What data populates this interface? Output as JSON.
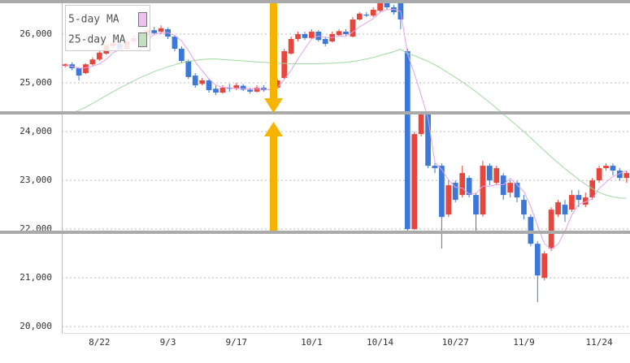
{
  "chart_data": {
    "type": "candlestick",
    "categories": [
      null,
      null,
      null,
      null,
      null,
      "8/22",
      null,
      null,
      null,
      null,
      null,
      null,
      null,
      null,
      null,
      "9/3",
      null,
      null,
      null,
      null,
      null,
      null,
      null,
      null,
      null,
      "9/17",
      null,
      null,
      null,
      null,
      null,
      null,
      null,
      null,
      null,
      null,
      "10/1",
      null,
      null,
      null,
      null,
      null,
      null,
      null,
      null,
      null,
      "10/14",
      null,
      null,
      null,
      null,
      null,
      null,
      null,
      null,
      null,
      null,
      "10/27",
      null,
      null,
      null,
      null,
      null,
      null,
      null,
      null,
      null,
      "11/9",
      null,
      null,
      null,
      null,
      null,
      null,
      null,
      null,
      null,
      null,
      "11/24",
      null,
      null,
      null,
      null
    ],
    "open": [
      25350,
      25380,
      25300,
      25200,
      25380,
      25480,
      25600,
      25750,
      25800,
      25700,
      25850,
      25900,
      25980,
      26080,
      26050,
      26100,
      25950,
      25700,
      25450,
      25150,
      24980,
      25050,
      24880,
      24800,
      24900,
      24880,
      24940,
      24860,
      24820,
      24900,
      24850,
      24900,
      25100,
      25600,
      25900,
      26000,
      25920,
      26050,
      25900,
      25850,
      25980,
      26050,
      25950,
      26300,
      26400,
      26380,
      26480,
      26650,
      26550,
      26650,
      25650,
      22000,
      23950,
      24350,
      23300,
      23300,
      22300,
      22950,
      22700,
      23050,
      22700,
      22300,
      23300,
      22950,
      23100,
      22750,
      22950,
      22600,
      22250,
      21700,
      21000,
      21600,
      22300,
      22500,
      22400,
      22700,
      22500,
      22650,
      23000,
      23250,
      23300,
      23200,
      23050
    ],
    "high": [
      25400,
      25420,
      25320,
      25400,
      25520,
      25650,
      25800,
      25880,
      25830,
      25900,
      25980,
      26050,
      26120,
      26150,
      26180,
      26130,
      25980,
      25750,
      25480,
      25200,
      25100,
      25080,
      24950,
      24950,
      24980,
      25000,
      24980,
      24900,
      24950,
      24950,
      24920,
      25080,
      25700,
      25950,
      26050,
      26050,
      26100,
      26080,
      25950,
      26050,
      26100,
      26100,
      26350,
      26450,
      26450,
      26550,
      26700,
      26680,
      26600,
      26680,
      25700,
      24000,
      24400,
      24380,
      23350,
      23350,
      23000,
      23000,
      23300,
      23100,
      22750,
      23400,
      23350,
      23300,
      23150,
      23000,
      23000,
      22700,
      22300,
      21750,
      21550,
      22450,
      22600,
      22600,
      22800,
      22800,
      22750,
      23050,
      23300,
      23350,
      23350,
      23250,
      23200
    ],
    "low": [
      25320,
      25260,
      25050,
      25180,
      25350,
      25450,
      25580,
      25700,
      25650,
      25680,
      25820,
      25880,
      25950,
      25980,
      26000,
      25900,
      25650,
      25400,
      25080,
      24900,
      24950,
      24800,
      24750,
      24780,
      24820,
      24850,
      24830,
      24780,
      24800,
      24820,
      24780,
      24880,
      25080,
      25580,
      25850,
      25880,
      25900,
      25850,
      25750,
      25830,
      25950,
      25970,
      25930,
      26280,
      26350,
      26350,
      26450,
      26500,
      26400,
      26100,
      21950,
      21980,
      23900,
      23250,
      23150,
      21600,
      22250,
      22550,
      22650,
      22650,
      21950,
      22250,
      22900,
      22900,
      22600,
      22650,
      22550,
      22200,
      21650,
      20500,
      20950,
      21550,
      22250,
      22150,
      22350,
      22450,
      22450,
      22600,
      22950,
      23200,
      23100,
      23000,
      22950
    ],
    "close": [
      25380,
      25300,
      25150,
      25380,
      25480,
      25620,
      25780,
      25820,
      25680,
      25850,
      25920,
      25980,
      26080,
      26020,
      26120,
      25950,
      25700,
      25450,
      25120,
      24950,
      25050,
      24850,
      24800,
      24900,
      24880,
      24950,
      24860,
      24820,
      24900,
      24850,
      24870,
      25050,
      25650,
      25900,
      26000,
      25920,
      26050,
      25880,
      25800,
      26000,
      26060,
      26000,
      26300,
      26420,
      26380,
      26500,
      26650,
      26550,
      26450,
      26300,
      22000,
      23950,
      24350,
      23300,
      23250,
      22250,
      22900,
      22600,
      23150,
      22700,
      22300,
      23300,
      23000,
      23250,
      22700,
      22950,
      22650,
      22300,
      21700,
      21050,
      21500,
      22400,
      22550,
      22300,
      22700,
      22600,
      22650,
      23000,
      23250,
      23300,
      23200,
      23050,
      23150
    ],
    "up_color": "#e8463c",
    "down_color": "#3c78d8",
    "series": [
      {
        "name": "5-day MA",
        "color": "#e6a0e6",
        "values": [
          25350,
          25340,
          25300,
          25310,
          25340,
          25390,
          25480,
          25620,
          25680,
          25750,
          25810,
          25850,
          25900,
          25990,
          26030,
          26030,
          25970,
          25860,
          25660,
          25430,
          25250,
          25080,
          24950,
          24910,
          24900,
          24890,
          24880,
          24880,
          24880,
          24870,
          24860,
          24910,
          25070,
          25260,
          25490,
          25700,
          25900,
          25960,
          25930,
          25930,
          25960,
          25950,
          26040,
          26150,
          26230,
          26320,
          26450,
          26500,
          26510,
          26470,
          25600,
          25190,
          24750,
          24270,
          23370,
          23220,
          23010,
          22860,
          22840,
          22720,
          22730,
          22880,
          22880,
          22910,
          22910,
          23040,
          22910,
          22770,
          22460,
          22070,
          21700,
          21590,
          21690,
          21960,
          22290,
          22510,
          22560,
          22620,
          22840,
          22960,
          23080,
          23140,
          23200
        ]
      },
      {
        "name": "25-day MA",
        "color": "#9fd89f",
        "values": [
          null,
          24380,
          24440,
          24500,
          24580,
          24660,
          24740,
          24820,
          24900,
          24970,
          25040,
          25110,
          25170,
          25230,
          25280,
          25330,
          25370,
          25410,
          25440,
          25460,
          25480,
          25490,
          25490,
          25480,
          25470,
          25460,
          25450,
          25440,
          25430,
          25420,
          25410,
          25400,
          25400,
          25390,
          25390,
          25390,
          25390,
          25390,
          25400,
          25400,
          25410,
          25420,
          25440,
          25460,
          25490,
          25520,
          25560,
          25600,
          25640,
          25690,
          25600,
          25560,
          25500,
          25440,
          25370,
          25290,
          25200,
          25110,
          25020,
          24920,
          24820,
          24710,
          24600,
          24480,
          24360,
          24240,
          24120,
          24000,
          23870,
          23740,
          23610,
          23480,
          23360,
          23240,
          23130,
          23020,
          22920,
          22830,
          22750,
          22700,
          22660,
          22640,
          22630
        ]
      }
    ],
    "legend_box_colors": [
      "#f0c0f0",
      "#c0e0c0"
    ],
    "ylim": [
      19870,
      26700
    ],
    "yticks": [
      {
        "value": 20000,
        "label": "20,000"
      },
      {
        "value": 21000,
        "label": "21,000"
      },
      {
        "value": 22000,
        "label": "22,000"
      },
      {
        "value": 23000,
        "label": "23,000"
      },
      {
        "value": 24000,
        "label": "24,000"
      },
      {
        "value": 25000,
        "label": "25,000"
      },
      {
        "value": 26000,
        "label": "26,000"
      }
    ],
    "grid": true
  }
}
